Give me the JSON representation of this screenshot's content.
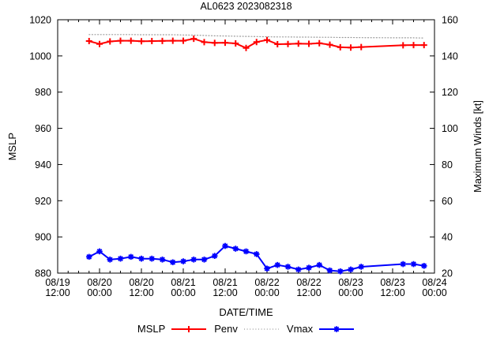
{
  "chart_data": {
    "type": "line",
    "title": "AL0623 2023082318",
    "xlabel": "DATE/TIME",
    "ylabel_left": "MSLP",
    "ylabel_right": "Maximum Winds [kt]",
    "grid": false,
    "legend_position": "bottom-center",
    "x_axis": {
      "range_hours": [
        0,
        108
      ],
      "minor_tick_step_hours": 3,
      "major_ticks": [
        {
          "hours": 0,
          "line1": "08/19",
          "line2": "12:00"
        },
        {
          "hours": 12,
          "line1": "08/20",
          "line2": "00:00"
        },
        {
          "hours": 24,
          "line1": "08/20",
          "line2": "12:00"
        },
        {
          "hours": 36,
          "line1": "08/21",
          "line2": "00:00"
        },
        {
          "hours": 48,
          "line1": "08/21",
          "line2": "12:00"
        },
        {
          "hours": 60,
          "line1": "08/22",
          "line2": "00:00"
        },
        {
          "hours": 72,
          "line1": "08/22",
          "line2": "12:00"
        },
        {
          "hours": 84,
          "line1": "08/23",
          "line2": "00:00"
        },
        {
          "hours": 96,
          "line1": "08/23",
          "line2": "12:00"
        },
        {
          "hours": 108,
          "line1": "08/24",
          "line2": "00:00"
        }
      ]
    },
    "y_left_axis": {
      "min": 880,
      "max": 1020,
      "tick_step": 20,
      "tick_labels": [
        "880",
        "900",
        "920",
        "940",
        "960",
        "980",
        "1000",
        "1020"
      ]
    },
    "y_right_axis": {
      "min": 20,
      "max": 160,
      "tick_step": 20,
      "tick_labels": [
        "20",
        "40",
        "60",
        "80",
        "100",
        "120",
        "140",
        "160"
      ]
    },
    "x_times": [
      "08/19 21:00",
      "08/20 00:00",
      "08/20 03:00",
      "08/20 06:00",
      "08/20 09:00",
      "08/20 12:00",
      "08/20 15:00",
      "08/20 18:00",
      "08/20 21:00",
      "08/21 00:00",
      "08/21 03:00",
      "08/21 06:00",
      "08/21 09:00",
      "08/21 12:00",
      "08/21 15:00",
      "08/21 18:00",
      "08/21 21:00",
      "08/22 00:00",
      "08/22 03:00",
      "08/22 06:00",
      "08/22 09:00",
      "08/22 12:00",
      "08/22 15:00",
      "08/22 18:00",
      "08/22 21:00",
      "08/23 00:00",
      "08/23 03:00",
      "08/23 15:00",
      "08/23 18:00",
      "08/23 21:00"
    ],
    "x_hours": [
      9,
      12,
      15,
      18,
      21,
      24,
      27,
      30,
      33,
      36,
      39,
      42,
      45,
      48,
      51,
      54,
      57,
      60,
      63,
      66,
      69,
      72,
      75,
      78,
      81,
      84,
      87,
      99,
      102,
      105
    ],
    "series": [
      {
        "name": "MSLP",
        "axis": "left",
        "color": "#ff0000",
        "marker": "plus",
        "line": "solid",
        "values": [
          1008.2,
          1006.6,
          1008.0,
          1008.4,
          1008.4,
          1008.1,
          1008.2,
          1008.3,
          1008.4,
          1008.4,
          1009.5,
          1007.6,
          1007.2,
          1007.3,
          1006.9,
          1004.4,
          1007.7,
          1008.8,
          1006.5,
          1006.6,
          1006.8,
          1006.7,
          1007.0,
          1006.2,
          1004.8,
          1004.6,
          1004.9,
          1005.9,
          1006.0,
          1006.0
        ]
      },
      {
        "name": "Penv",
        "axis": "left",
        "color": "#9a9a9a",
        "marker": "none",
        "line": "dotted",
        "values": [
          1011.8,
          1011.8,
          1011.8,
          1011.8,
          1011.8,
          1011.7,
          1011.7,
          1011.7,
          1011.7,
          1011.6,
          1011.5,
          1011.3,
          1011.1,
          1011.0,
          1010.9,
          1010.8,
          1010.7,
          1010.6,
          1010.5,
          1010.5,
          1010.4,
          1010.4,
          1010.3,
          1010.3,
          1010.2,
          1010.2,
          1010.1,
          1010.0,
          1010.0,
          1009.9
        ]
      },
      {
        "name": "Vmax",
        "axis": "right",
        "color": "#0000ff",
        "marker": "asterisk",
        "line": "solid",
        "values": [
          29,
          32,
          27.5,
          28,
          29,
          28,
          28,
          27.5,
          26,
          26.5,
          27.5,
          27.5,
          29.5,
          35,
          33.5,
          32,
          30.5,
          22.5,
          24.5,
          23.5,
          22,
          23,
          24.5,
          21.5,
          21,
          22,
          23.5,
          25,
          25,
          24
        ]
      }
    ],
    "data_gap": {
      "after_time": "08/23 03:00",
      "before_time": "08/23 15:00"
    }
  }
}
